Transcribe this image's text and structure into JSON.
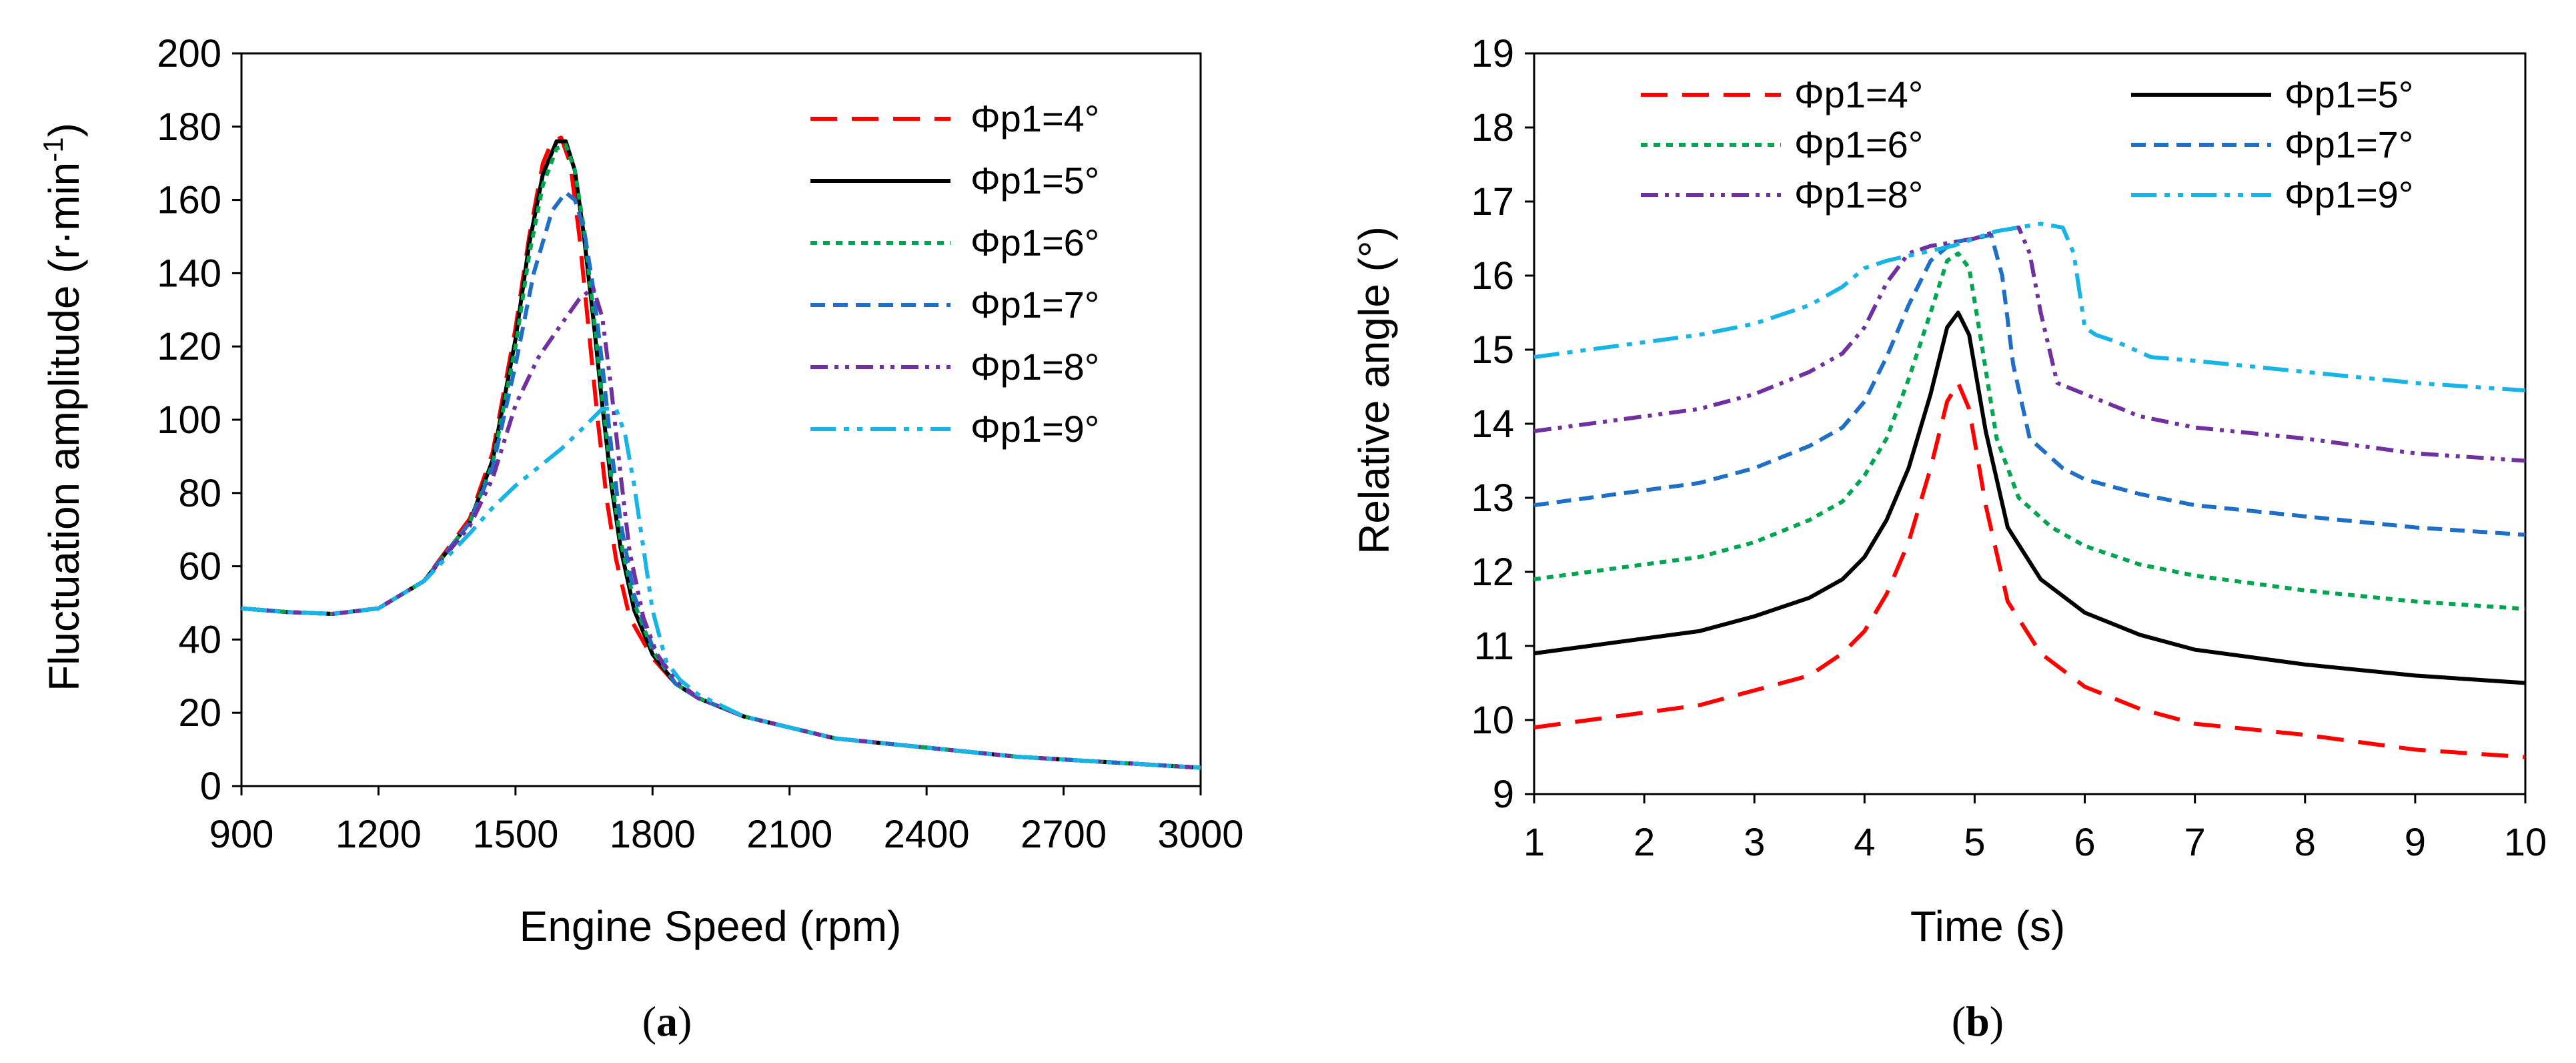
{
  "chart_data": [
    {
      "type": "line",
      "panel_label": "a",
      "xlabel": "Engine Speed (rpm)",
      "ylabel_main": "Fluctuation amplitude (r·min",
      "ylabel_sup": "-1",
      "ylabel_end": ")",
      "xlim": [
        900,
        3000
      ],
      "ylim": [
        0,
        200
      ],
      "xticks": [
        900,
        1200,
        1500,
        1800,
        2100,
        2400,
        2700,
        3000
      ],
      "yticks": [
        0,
        20,
        40,
        60,
        80,
        100,
        120,
        140,
        160,
        180,
        200
      ],
      "grid": false,
      "legend_position": "top-right",
      "series": [
        {
          "name": "Φp1=4°",
          "color": "#ff0000",
          "dash": "dash",
          "x": [
            900,
            1000,
            1100,
            1200,
            1300,
            1400,
            1450,
            1500,
            1530,
            1560,
            1580,
            1600,
            1620,
            1640,
            1660,
            1680,
            1700,
            1720,
            1750,
            1800,
            1850,
            1900,
            2000,
            2100,
            2200,
            2400,
            2600,
            2800,
            3000
          ],
          "y": [
            48.5,
            47.5,
            47,
            48.5,
            56,
            73,
            91,
            125,
            150,
            170,
            176,
            177,
            170,
            150,
            125,
            100,
            78,
            62,
            46,
            35,
            28,
            24,
            19,
            16,
            13,
            10.5,
            8,
            6.5,
            5
          ]
        },
        {
          "name": "Φp1=5°",
          "color": "#000000",
          "dash": "solid",
          "x": [
            900,
            1000,
            1100,
            1200,
            1300,
            1400,
            1450,
            1500,
            1530,
            1560,
            1590,
            1610,
            1630,
            1650,
            1670,
            1690,
            1710,
            1730,
            1760,
            1800,
            1850,
            1900,
            2000,
            2100,
            2200,
            2400,
            2600,
            2800,
            3000
          ],
          "y": [
            48.5,
            47.5,
            47,
            48.5,
            56,
            72,
            89,
            122,
            148,
            167,
            176,
            176,
            168,
            150,
            128,
            104,
            82,
            65,
            48,
            36,
            28,
            24,
            19,
            16,
            13,
            10.5,
            8,
            6.5,
            5
          ]
        },
        {
          "name": "Φp1=6°",
          "color": "#00a64f",
          "dash": "dot",
          "x": [
            900,
            1000,
            1100,
            1200,
            1300,
            1400,
            1450,
            1500,
            1530,
            1560,
            1590,
            1610,
            1630,
            1650,
            1670,
            1690,
            1710,
            1730,
            1760,
            1800,
            1850,
            1900,
            2000,
            2100,
            2200,
            2400,
            2600,
            2800,
            3000
          ],
          "y": [
            48.5,
            47.5,
            47,
            48.5,
            56,
            72,
            88,
            120,
            145,
            164,
            174,
            175,
            168,
            152,
            130,
            106,
            84,
            67,
            50,
            37,
            28,
            24,
            19,
            16,
            13,
            10.5,
            8,
            6.5,
            5
          ]
        },
        {
          "name": "Φp1=7°",
          "color": "#1f6fc6",
          "dash": "dash-short",
          "x": [
            900,
            1000,
            1100,
            1200,
            1300,
            1400,
            1450,
            1500,
            1540,
            1580,
            1610,
            1630,
            1650,
            1670,
            1690,
            1710,
            1730,
            1760,
            1800,
            1850,
            1900,
            2000,
            2100,
            2200,
            2400,
            2600,
            2800,
            3000
          ],
          "y": [
            48.5,
            47.5,
            47,
            48.5,
            56,
            72,
            87,
            115,
            140,
            157,
            162,
            160,
            152,
            136,
            115,
            92,
            72,
            52,
            38,
            28,
            24,
            19,
            16,
            13,
            10.5,
            8,
            6.5,
            5
          ]
        },
        {
          "name": "Φp1=8°",
          "color": "#7030a0",
          "dash": "dashdotdot",
          "x": [
            900,
            1000,
            1100,
            1200,
            1300,
            1400,
            1450,
            1500,
            1550,
            1600,
            1640,
            1670,
            1690,
            1710,
            1730,
            1750,
            1780,
            1810,
            1850,
            1900,
            2000,
            2100,
            2200,
            2400,
            2600,
            2800,
            3000
          ],
          "y": [
            48.5,
            47.5,
            47,
            48.5,
            56,
            71,
            84,
            104,
            117,
            126,
            133,
            136,
            128,
            108,
            85,
            64,
            46,
            36,
            29,
            24,
            19,
            16,
            13,
            10.5,
            8,
            6.5,
            5
          ]
        },
        {
          "name": "Φp1=9°",
          "color": "#19b4e6",
          "dash": "dashdotdot-long",
          "x": [
            900,
            1000,
            1100,
            1200,
            1300,
            1400,
            1450,
            1500,
            1550,
            1600,
            1650,
            1690,
            1720,
            1740,
            1760,
            1780,
            1800,
            1830,
            1860,
            1900,
            2000,
            2100,
            2200,
            2400,
            2600,
            2800,
            3000
          ],
          "y": [
            48.5,
            47.5,
            47,
            48.5,
            56,
            69,
            76,
            82,
            87,
            92,
            98,
            103,
            103,
            96,
            82,
            65,
            48,
            34,
            29,
            25,
            19,
            16,
            13,
            10.5,
            8,
            6.5,
            5
          ]
        }
      ]
    },
    {
      "type": "line",
      "panel_label": "b",
      "xlabel": "Time (s)",
      "ylabel_main": "Relative angle (°)",
      "xlim": [
        1,
        10
      ],
      "ylim": [
        9,
        19
      ],
      "xticks": [
        1,
        2,
        3,
        4,
        5,
        6,
        7,
        8,
        9,
        10
      ],
      "yticks": [
        9,
        10,
        11,
        12,
        13,
        14,
        15,
        16,
        17,
        18,
        19
      ],
      "grid": false,
      "legend_position": "top",
      "series": [
        {
          "name": "Φp1=4°",
          "color": "#ff0000",
          "dash": "dash",
          "x": [
            1,
            1.5,
            2,
            2.5,
            3,
            3.5,
            3.8,
            4,
            4.2,
            4.4,
            4.6,
            4.75,
            4.85,
            4.95,
            5.1,
            5.3,
            5.6,
            6,
            6.5,
            7,
            8,
            9,
            10
          ],
          "y": [
            9.9,
            10.0,
            10.1,
            10.2,
            10.4,
            10.6,
            10.9,
            11.2,
            11.7,
            12.4,
            13.4,
            14.3,
            14.55,
            14.2,
            12.9,
            11.6,
            10.9,
            10.45,
            10.15,
            9.95,
            9.8,
            9.6,
            9.5
          ]
        },
        {
          "name": "Φp1=5°",
          "color": "#000000",
          "dash": "solid",
          "x": [
            1,
            1.5,
            2,
            2.5,
            3,
            3.5,
            3.8,
            4,
            4.2,
            4.4,
            4.6,
            4.75,
            4.85,
            4.95,
            5.1,
            5.3,
            5.6,
            6,
            6.5,
            7,
            8,
            9,
            10
          ],
          "y": [
            10.9,
            11.0,
            11.1,
            11.2,
            11.4,
            11.65,
            11.9,
            12.2,
            12.7,
            13.4,
            14.4,
            15.3,
            15.5,
            15.2,
            13.9,
            12.6,
            11.9,
            11.45,
            11.15,
            10.95,
            10.75,
            10.6,
            10.5
          ]
        },
        {
          "name": "Φp1=6°",
          "color": "#00a64f",
          "dash": "dot",
          "x": [
            1,
            1.5,
            2,
            2.5,
            3,
            3.5,
            3.8,
            4,
            4.2,
            4.4,
            4.6,
            4.75,
            4.85,
            4.95,
            5.05,
            5.2,
            5.4,
            5.7,
            6,
            6.5,
            7,
            8,
            9,
            10
          ],
          "y": [
            11.9,
            12.0,
            12.1,
            12.2,
            12.4,
            12.7,
            12.95,
            13.3,
            13.8,
            14.6,
            15.5,
            16.2,
            16.3,
            16.1,
            15.2,
            13.8,
            13.0,
            12.6,
            12.35,
            12.1,
            11.95,
            11.75,
            11.6,
            11.5
          ]
        },
        {
          "name": "Φp1=7°",
          "color": "#1f6fc6",
          "dash": "dash-short",
          "x": [
            1,
            1.5,
            2,
            2.5,
            3,
            3.5,
            3.8,
            4,
            4.2,
            4.4,
            4.6,
            4.8,
            5,
            5.15,
            5.25,
            5.35,
            5.5,
            5.8,
            6,
            6.5,
            7,
            8,
            9,
            10
          ],
          "y": [
            12.9,
            13.0,
            13.1,
            13.2,
            13.4,
            13.7,
            13.95,
            14.3,
            14.9,
            15.6,
            16.2,
            16.45,
            16.5,
            16.55,
            16.0,
            14.8,
            13.8,
            13.4,
            13.25,
            13.05,
            12.9,
            12.75,
            12.6,
            12.5
          ]
        },
        {
          "name": "Φp1=8°",
          "color": "#7030a0",
          "dash": "dashdotdot",
          "x": [
            1,
            1.5,
            2,
            2.5,
            3,
            3.5,
            3.8,
            4,
            4.2,
            4.4,
            4.6,
            4.8,
            5,
            5.2,
            5.4,
            5.5,
            5.6,
            5.75,
            6,
            6.5,
            7,
            8,
            9,
            10
          ],
          "y": [
            13.9,
            14.0,
            14.1,
            14.2,
            14.4,
            14.7,
            14.95,
            15.3,
            15.9,
            16.3,
            16.4,
            16.45,
            16.5,
            16.6,
            16.65,
            16.3,
            15.5,
            14.55,
            14.4,
            14.1,
            13.95,
            13.8,
            13.6,
            13.5
          ]
        },
        {
          "name": "Φp1=9°",
          "color": "#19b4e6",
          "dash": "dashdotdot-long",
          "x": [
            1,
            1.5,
            2,
            2.5,
            3,
            3.5,
            3.8,
            4,
            4.2,
            4.5,
            4.8,
            5,
            5.2,
            5.4,
            5.6,
            5.8,
            5.9,
            6,
            6.1,
            6.3,
            6.6,
            7,
            8,
            9,
            10
          ],
          "y": [
            14.9,
            15.0,
            15.1,
            15.2,
            15.35,
            15.6,
            15.85,
            16.1,
            16.2,
            16.3,
            16.4,
            16.5,
            16.6,
            16.65,
            16.7,
            16.65,
            16.3,
            15.3,
            15.2,
            15.1,
            14.9,
            14.85,
            14.7,
            14.55,
            14.45
          ]
        }
      ]
    }
  ]
}
